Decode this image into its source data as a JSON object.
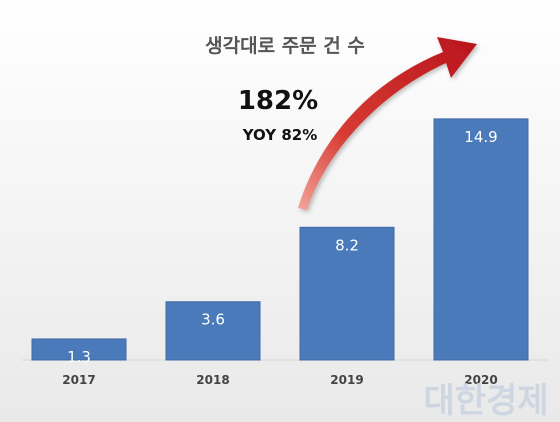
{
  "chart_data": {
    "type": "bar",
    "title": "생각대로 주문 건 수",
    "categories": [
      "2017",
      "2018",
      "2019",
      "2020"
    ],
    "values": [
      1.3,
      3.6,
      8.2,
      14.9
    ],
    "value_labels": [
      "1.3",
      "3.6",
      "8.2",
      "14.9"
    ],
    "ylim": [
      0,
      16.5
    ],
    "grid": false,
    "legend": "none",
    "bar_color": "#4a7ab9",
    "annotation": {
      "growth": "182%",
      "yoy": "YOY 82%",
      "arrow_color": "#c8202a"
    }
  },
  "watermark": {
    "text": "대한경제",
    "color": "#c9d3e0"
  }
}
